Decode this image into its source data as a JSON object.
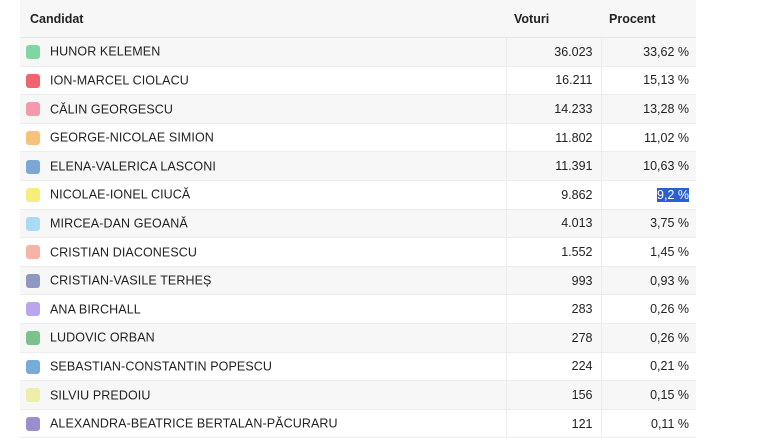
{
  "table": {
    "headers": {
      "candidate": "Candidat",
      "votes": "Voturi",
      "percent": "Procent"
    },
    "rows": [
      {
        "name": "HUNOR KELEMEN",
        "votes": "36.023",
        "percent": "33,62 %",
        "color": "#7fd6a0"
      },
      {
        "name": "ION-MARCEL CIOLACU",
        "votes": "16.211",
        "percent": "15,13 %",
        "color": "#f0646e"
      },
      {
        "name": "CĂLIN GEORGESCU",
        "votes": "14.233",
        "percent": "13,28 %",
        "color": "#f59aae"
      },
      {
        "name": "GEORGE-NICOLAE SIMION",
        "votes": "11.802",
        "percent": "11,02 %",
        "color": "#f7c27a"
      },
      {
        "name": "ELENA-VALERICA LASCONI",
        "votes": "11.391",
        "percent": "10,63 %",
        "color": "#7aa7d6"
      },
      {
        "name": "NICOLAE-IONEL CIUCĂ",
        "votes": "9.862",
        "percent": "9,2 %",
        "color": "#f5ee7a",
        "selected": true
      },
      {
        "name": "MIRCEA-DAN GEOANĂ",
        "votes": "4.013",
        "percent": "3,75 %",
        "color": "#a9dcf4"
      },
      {
        "name": "CRISTIAN DIACONESCU",
        "votes": "1.552",
        "percent": "1,45 %",
        "color": "#f7b3a8"
      },
      {
        "name": "CRISTIAN-VASILE TERHEȘ",
        "votes": "993",
        "percent": "0,93 %",
        "color": "#8e98c0"
      },
      {
        "name": "ANA BIRCHALL",
        "votes": "283",
        "percent": "0,26 %",
        "color": "#b9a6ee"
      },
      {
        "name": "LUDOVIC ORBAN",
        "votes": "278",
        "percent": "0,26 %",
        "color": "#7cc28d"
      },
      {
        "name": "SEBASTIAN-CONSTANTIN POPESCU",
        "votes": "224",
        "percent": "0,21 %",
        "color": "#78acd8"
      },
      {
        "name": "SILVIU PREDOIU",
        "votes": "156",
        "percent": "0,15 %",
        "color": "#eeeeaa"
      },
      {
        "name": "ALEXANDRA-BEATRICE BERTALAN-PĂCURARU",
        "votes": "121",
        "percent": "0,11 %",
        "color": "#9a8fcc"
      }
    ]
  }
}
